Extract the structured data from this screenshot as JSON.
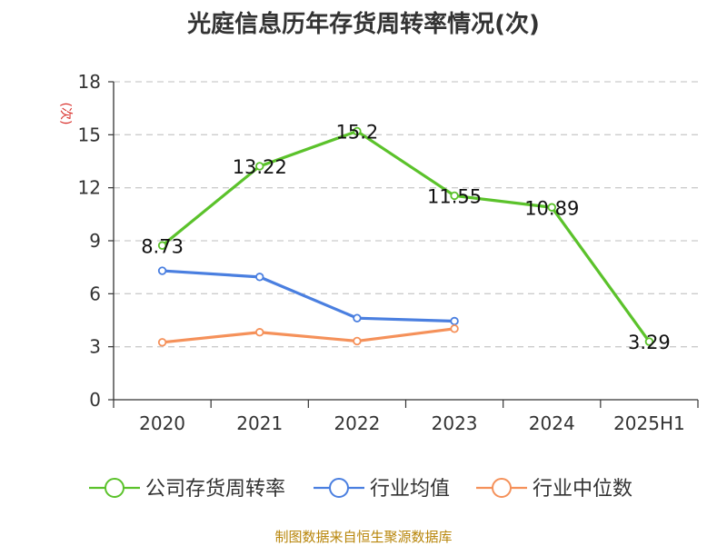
{
  "chart_data": {
    "type": "line",
    "title": "光庭信息历年存货周转率情况(次)",
    "ylabel": "(次)",
    "ylim": [
      0,
      18
    ],
    "yticks": [
      0,
      3,
      6,
      9,
      12,
      15,
      18
    ],
    "grid": "horizontal-dashed",
    "legend_position": "bottom",
    "categories": [
      "2020",
      "2021",
      "2022",
      "2023",
      "2024",
      "2025H1"
    ],
    "series": [
      {
        "name": "公司存货周转率",
        "color": "#5bc22b",
        "show_labels": true,
        "values": [
          8.73,
          13.22,
          15.2,
          11.55,
          10.89,
          3.29
        ],
        "labels": [
          "8.73",
          "13.22",
          "15.2",
          "11.55",
          "10.89",
          "3.29"
        ]
      },
      {
        "name": "行业均值",
        "color": "#4a7fe0",
        "show_labels": false,
        "values": [
          7.3,
          6.95,
          4.62,
          4.45,
          null,
          null
        ]
      },
      {
        "name": "行业中位数",
        "color": "#f5915a",
        "show_labels": false,
        "values": [
          3.25,
          3.82,
          3.32,
          4.02,
          null,
          null
        ]
      }
    ]
  },
  "footer": {
    "source": "制图数据来自恒生聚源数据库"
  }
}
